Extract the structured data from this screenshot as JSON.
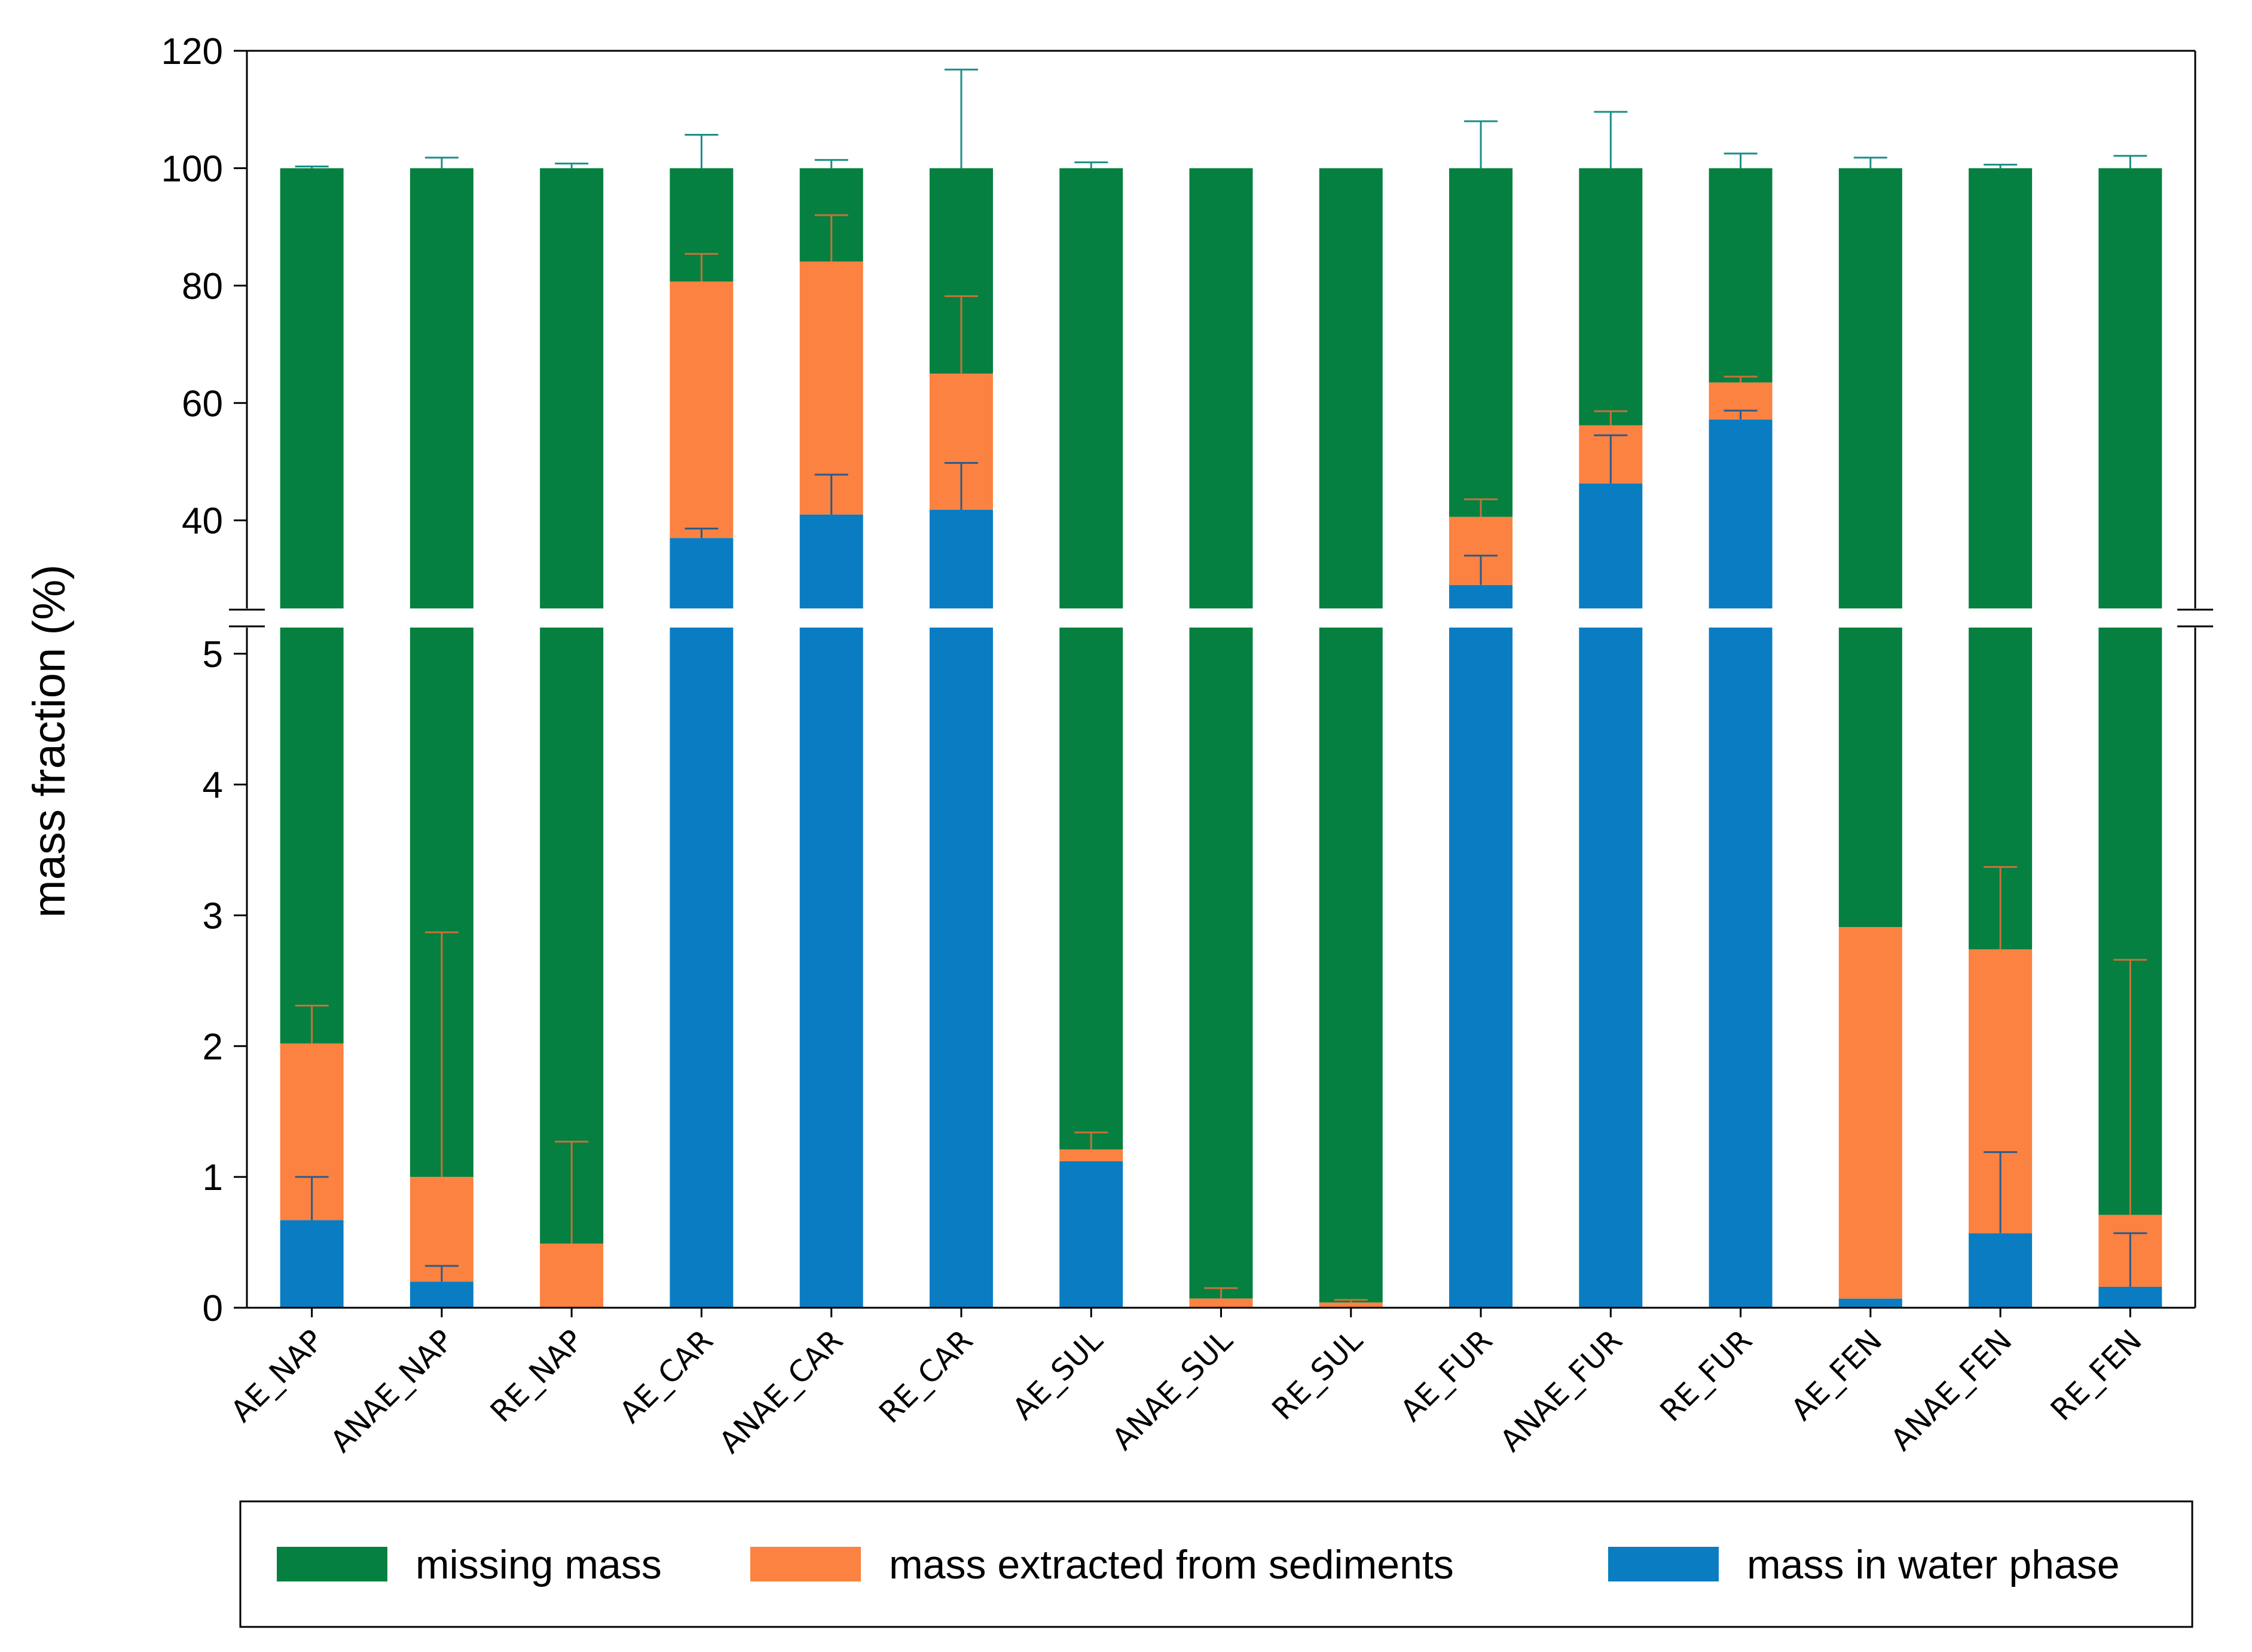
{
  "chart_data": {
    "type": "bar",
    "stacked": true,
    "broken_axis": true,
    "ylabel": "mass fraction (%)",
    "xlabel": "",
    "upper_ylim": [
      25,
      120
    ],
    "lower_ylim": [
      0,
      5.2
    ],
    "upper_ticks": [
      40,
      60,
      80,
      100,
      120
    ],
    "lower_ticks": [
      0,
      1,
      2,
      3,
      4,
      5
    ],
    "categories": [
      "AE_NAP",
      "ANAE_NAP",
      "RE_NAP",
      "AE_CAR",
      "ANAE_CAR",
      "RE_CAR",
      "AE_SUL",
      "ANAE_SUL",
      "RE_SUL",
      "AE_FUR",
      "ANAE_FUR",
      "RE_FUR",
      "AE_FEN",
      "ANAE_FEN",
      "RE_FEN"
    ],
    "series": [
      {
        "name": "mass in water phase",
        "color": "#0a7dc2",
        "values": [
          0.67,
          0.2,
          0.0,
          37.0,
          41.0,
          41.8,
          1.12,
          0.0,
          0.0,
          29.0,
          46.3,
          57.2,
          0.07,
          0.57,
          0.16
        ],
        "errors": [
          0.33,
          0.12,
          0.0,
          1.6,
          6.8,
          8.0,
          0.0,
          0.0,
          0.0,
          5.0,
          8.2,
          1.5,
          0.0,
          0.62,
          0.41
        ]
      },
      {
        "name": "mass extracted from sediments",
        "color": "#fb8240",
        "values": [
          1.35,
          0.8,
          0.49,
          43.7,
          43.1,
          23.2,
          0.09,
          0.07,
          0.04,
          11.6,
          9.9,
          6.3,
          2.84,
          2.17,
          0.55
        ],
        "errors": [
          0.29,
          1.87,
          0.78,
          4.7,
          7.9,
          13.2,
          0.13,
          0.08,
          0.02,
          3.0,
          2.4,
          1.0,
          0.0,
          0.63,
          1.95
        ]
      },
      {
        "name": "missing mass",
        "color": "#058040",
        "values": [
          97.98,
          99.0,
          99.51,
          19.3,
          15.9,
          35.0,
          98.79,
          99.93,
          99.96,
          59.4,
          43.8,
          36.5,
          97.09,
          97.26,
          99.29
        ],
        "errors": [
          0.3,
          1.8,
          0.8,
          5.7,
          1.4,
          16.8,
          1.0,
          0.0,
          0.0,
          8.0,
          9.6,
          2.5,
          1.8,
          0.6,
          2.1
        ]
      }
    ],
    "legend_position": "bottom"
  }
}
